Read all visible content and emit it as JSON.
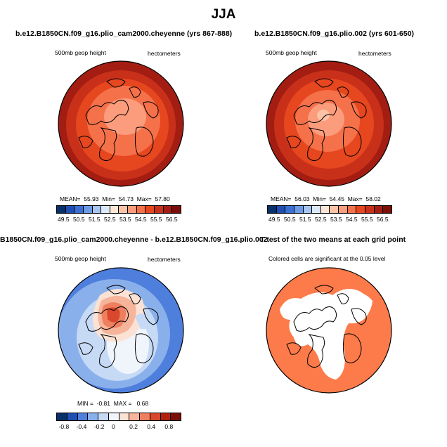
{
  "figure": {
    "title": "JJA",
    "panels": [
      {
        "title": "b.e12.B1850CN.f09_g16.plio_cam2000.cheyenne (yrs 867-888)",
        "left_label": "500mb geop height",
        "right_label": "hectometers",
        "stats": {
          "mean_label": "MEAN=",
          "mean": "55.93",
          "min_label": "Min=",
          "min": "54.73",
          "max_label": "Max=",
          "max": "57.80"
        },
        "colorbar_labels": [
          "49.5",
          "50.5",
          "51.5",
          "52.5",
          "53.5",
          "54.5",
          "55.5",
          "56.5"
        ]
      },
      {
        "title": "b.e12.B1850CN.f09_g16.plio.002 (yrs 601-650)",
        "left_label": "500mb geop height",
        "right_label": "hectometers",
        "stats": {
          "mean_label": "MEAN=",
          "mean": "56.03",
          "min_label": "Min=",
          "min": "54.45",
          "max_label": "Max=",
          "max": "58.02"
        },
        "colorbar_labels": [
          "49.5",
          "50.5",
          "51.5",
          "52.5",
          "53.5",
          "54.5",
          "55.5",
          "56.5"
        ]
      },
      {
        "title": "B1850CN.f09_g16.plio_cam2000.cheyenne - b.e12.B1850CN.f09_g16.plio.002",
        "left_label": "500mb geop height",
        "right_label": "hectometers",
        "stats": {
          "min_label": "MIN =",
          "min": "-0.81",
          "max_label": "MAX =",
          "max": "0.68"
        },
        "colorbar_labels": [
          "-0.8",
          "-0.4",
          "-0.2",
          "0",
          "0.2",
          "0.4",
          "0.8"
        ]
      },
      {
        "title": "T-test of the two means at each grid point",
        "note": "Colored cells are significant at the 0.05 level"
      }
    ]
  },
  "colors": {
    "abs_scale": [
      "#08306b",
      "#1f4fb4",
      "#3b6fd4",
      "#6b9ae6",
      "#a7c4f0",
      "#dbe8f8",
      "#fde6d6",
      "#fcc3a6",
      "#fb9c7c",
      "#f5714a",
      "#e6471f",
      "#c9301a",
      "#a31d12",
      "#7a0f0a"
    ],
    "diff_scale": [
      "#08306b",
      "#1f4fb4",
      "#4f7fdc",
      "#8ab0ec",
      "#c6d9f5",
      "#f0f4fb",
      "#fbe2d4",
      "#f6b49a",
      "#ee7f5f",
      "#d9472c",
      "#b3200f",
      "#7a0f0a"
    ],
    "ttest_fill": "#fd7b4a",
    "land_line": "#000000"
  }
}
